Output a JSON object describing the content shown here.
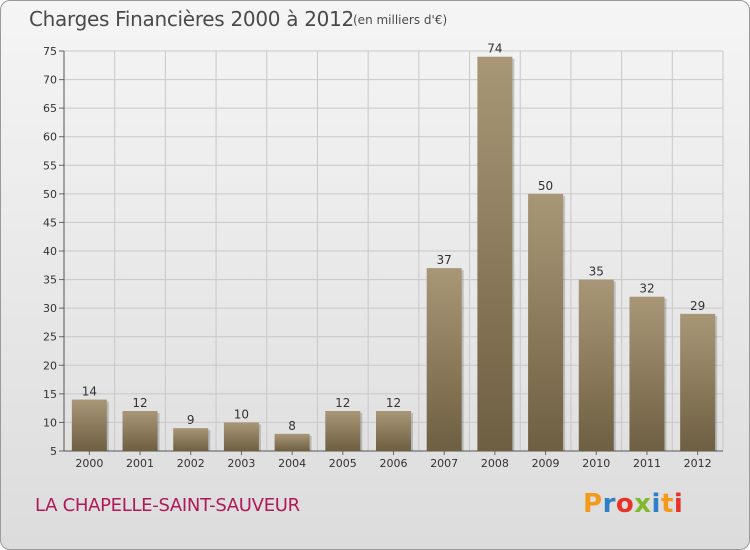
{
  "header": {
    "title": "Charges Financières 2000 à 2012",
    "subtitle": "(en milliers d'€)"
  },
  "footer": {
    "town": "LA CHAPELLE-SAINT-SAUVEUR",
    "logo_letters": [
      "P",
      "r",
      "o",
      "x",
      "i",
      "t",
      "i"
    ],
    "logo_colors": [
      "#f39a1b",
      "#2e7fc7",
      "#e7332a",
      "#7fba2c",
      "#2e7fc7",
      "#f39a1b",
      "#e7332a"
    ]
  },
  "colors": {
    "bar_top": "#a89777",
    "bar_bottom": "#6f5f42",
    "grid": "#c8c8c8"
  },
  "chart_data": {
    "type": "bar",
    "title": "Charges Financières 2000 à 2012",
    "subtitle": "(en milliers d'€)",
    "categories": [
      "2000",
      "2001",
      "2002",
      "2003",
      "2004",
      "2005",
      "2006",
      "2007",
      "2008",
      "2009",
      "2010",
      "2011",
      "2012"
    ],
    "values": [
      14,
      12,
      9,
      10,
      8,
      12,
      12,
      37,
      74,
      50,
      35,
      32,
      29
    ],
    "ylim": [
      5,
      75
    ],
    "yticks": [
      5,
      10,
      15,
      20,
      25,
      30,
      35,
      40,
      45,
      50,
      55,
      60,
      65,
      70,
      75
    ],
    "grid": true
  }
}
